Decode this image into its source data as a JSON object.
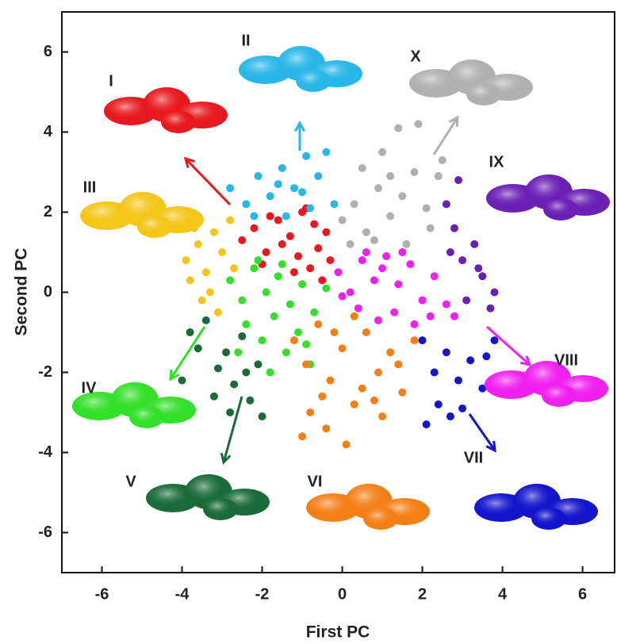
{
  "chart_data": {
    "type": "scatter",
    "xlabel": "First PC",
    "ylabel": "Second PC",
    "xlim": [
      -7,
      6.8
    ],
    "ylim": [
      -7,
      7
    ],
    "xticks": [
      -6,
      -4,
      -2,
      0,
      2,
      4,
      6
    ],
    "yticks": [
      -6,
      -4,
      -2,
      0,
      2,
      4,
      6
    ],
    "series": [
      {
        "name": "I",
        "color": "#e8191e",
        "x": [
          -2.5,
          -2.2,
          -1.9,
          -1.6,
          -1.3,
          -1.0,
          -0.7,
          -0.4,
          -2.0,
          -1.5,
          -1.1,
          -0.8,
          -0.5,
          -1.8,
          -1.2,
          -0.6,
          -0.3,
          -0.9
        ],
        "values": [
          1.3,
          1.6,
          1.0,
          1.8,
          1.4,
          2.0,
          1.7,
          1.5,
          0.7,
          1.2,
          0.9,
          0.6,
          0.3,
          1.9,
          0.5,
          1.1,
          0.8,
          2.1
        ]
      },
      {
        "name": "II",
        "color": "#29b6e8",
        "x": [
          -2.8,
          -2.4,
          -2.1,
          -1.8,
          -1.5,
          -1.2,
          -0.9,
          -0.6,
          -0.4,
          -0.2,
          -1.0,
          -1.4,
          -2.2,
          -0.8,
          -1.6
        ],
        "values": [
          2.6,
          2.2,
          2.9,
          2.4,
          3.1,
          2.6,
          3.4,
          2.9,
          3.5,
          2.2,
          2.5,
          1.9,
          1.9,
          2.1,
          2.7
        ]
      },
      {
        "name": "III",
        "color": "#f5c518",
        "x": [
          -3.9,
          -3.6,
          -3.4,
          -3.2,
          -3.0,
          -2.8,
          -3.5,
          -3.8,
          -3.3,
          -2.7,
          -3.1,
          -3.7
        ],
        "values": [
          0.8,
          1.2,
          0.5,
          1.5,
          1.0,
          1.8,
          -0.2,
          0.3,
          0.0,
          0.6,
          -0.5,
          1.6
        ]
      },
      {
        "name": "IV",
        "color": "#33e02a",
        "x": [
          -2.8,
          -2.5,
          -2.2,
          -1.9,
          -1.6,
          -1.3,
          -1.0,
          -0.7,
          -0.4,
          -2.4,
          -2.0,
          -1.7,
          -1.4,
          -1.1,
          -0.8,
          -2.6,
          -2.1,
          -1.5,
          -0.9,
          -1.8
        ],
        "values": [
          0.3,
          -0.2,
          0.6,
          0.0,
          0.4,
          -0.3,
          0.2,
          -0.5,
          0.1,
          -0.8,
          -1.2,
          -0.6,
          -1.5,
          -1.0,
          -1.8,
          -1.5,
          0.8,
          0.7,
          -1.3,
          -2.0
        ]
      },
      {
        "name": "V",
        "color": "#1a6b38",
        "x": [
          -3.8,
          -3.6,
          -3.4,
          -3.1,
          -2.9,
          -2.7,
          -2.5,
          -2.3,
          -2.1,
          -3.2,
          -2.8,
          -2.4,
          -2.0,
          -4.0
        ],
        "values": [
          -1.0,
          -1.4,
          -0.7,
          -1.9,
          -1.5,
          -2.3,
          -1.1,
          -2.7,
          -1.8,
          -2.6,
          -3.0,
          -2.0,
          -3.1,
          -2.2
        ]
      },
      {
        "name": "VI",
        "color": "#f57f17",
        "x": [
          -1.2,
          -0.9,
          -0.6,
          -0.3,
          0,
          0.3,
          0.6,
          0.9,
          1.2,
          1.5,
          1.8,
          -0.8,
          -0.4,
          0.1,
          0.5,
          1.0,
          1.4,
          -0.2,
          0.3,
          0.8,
          -1.0,
          -0.5
        ],
        "values": [
          -1.2,
          -1.8,
          -0.8,
          -2.2,
          -1.4,
          -2.8,
          -1.0,
          -2.0,
          -1.5,
          -2.5,
          -1.2,
          -3.0,
          -3.4,
          -3.8,
          -2.4,
          -3.1,
          -1.8,
          -1.0,
          -0.6,
          -2.7,
          -3.6,
          -2.6
        ]
      },
      {
        "name": "VII",
        "color": "#1414cc",
        "x": [
          2.0,
          2.3,
          2.6,
          2.9,
          3.2,
          3.5,
          3.8,
          2.4,
          3.0,
          3.6,
          2.1,
          2.7
        ],
        "values": [
          -1.2,
          -2.0,
          -1.5,
          -2.2,
          -1.7,
          -2.4,
          -1.2,
          -2.8,
          -2.9,
          -1.6,
          -3.3,
          -3.1
        ]
      },
      {
        "name": "VIII",
        "color": "#f020f0",
        "x": [
          -0.1,
          0.2,
          0.5,
          0.8,
          1.1,
          1.4,
          1.7,
          2.0,
          2.3,
          2.6,
          0.4,
          0.9,
          1.3,
          1.8,
          2.2,
          0.0,
          0.6,
          1.5,
          2.8,
          1.0
        ],
        "values": [
          0.5,
          0.0,
          0.8,
          0.3,
          0.9,
          0.2,
          0.7,
          -0.2,
          0.4,
          -0.3,
          -0.4,
          -0.7,
          -0.5,
          -0.8,
          -0.6,
          -0.1,
          1.0,
          1.0,
          -0.6,
          0.6
        ]
      },
      {
        "name": "IX",
        "color": "#6a1fb5",
        "x": [
          2.6,
          2.8,
          3.0,
          3.3,
          3.5,
          3.8,
          2.7,
          3.1,
          3.4,
          3.7,
          2.9
        ],
        "values": [
          2.2,
          1.6,
          0.8,
          1.2,
          0.4,
          0.0,
          1.0,
          -0.2,
          0.6,
          -0.4,
          2.8
        ]
      },
      {
        "name": "X",
        "color": "#b0b0b0",
        "x": [
          0.0,
          0.3,
          0.6,
          0.9,
          1.2,
          1.5,
          1.8,
          2.1,
          2.4,
          0.5,
          1.0,
          1.4,
          1.9,
          0.8,
          1.6,
          2.2,
          0.2,
          1.2,
          2.5
        ],
        "values": [
          1.8,
          2.2,
          1.5,
          2.6,
          1.9,
          2.4,
          3.0,
          2.1,
          2.9,
          3.1,
          3.5,
          4.1,
          4.2,
          1.3,
          1.2,
          1.6,
          1.2,
          2.9,
          3.3
        ]
      }
    ]
  }
}
